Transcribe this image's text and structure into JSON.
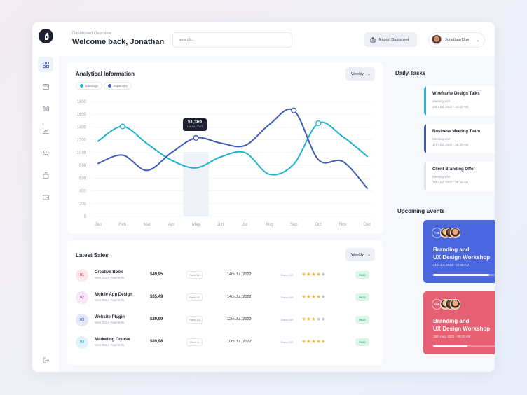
{
  "header": {
    "subtitle": "Dashboard Overview",
    "title": "Welcome back, Jonathan",
    "search_placeholder": "search...",
    "export_label": "Export Datasheet",
    "user_name": "Jonathan Doe"
  },
  "analytics": {
    "title": "Analytical Information",
    "period": "Weekly",
    "legend": [
      "Earnings",
      "Expenses"
    ],
    "tooltip_value": "$1,369",
    "tooltip_date": "1st Jul, 2022"
  },
  "chart_data": {
    "type": "line",
    "categories": [
      "Jan",
      "Feb",
      "Mar",
      "Apr",
      "May",
      "Jun",
      "Jul",
      "Aug",
      "Sep",
      "Oct",
      "Nov",
      "Dec"
    ],
    "ylim": [
      0,
      1800
    ],
    "yticks": [
      "1800",
      "1600",
      "1400",
      "1200",
      "1000",
      "800",
      "600",
      "400",
      "200",
      "0"
    ],
    "series": [
      {
        "name": "Earnings",
        "color": "#20b3d0",
        "values": [
          1180,
          1410,
          1140,
          880,
          760,
          930,
          1000,
          660,
          820,
          1460,
          1250,
          940
        ]
      },
      {
        "name": "Expenses",
        "color": "#3f5bb5",
        "values": [
          830,
          960,
          720,
          1000,
          1230,
          1150,
          1110,
          1440,
          1660,
          890,
          860,
          440
        ]
      }
    ],
    "highlight_category": "May"
  },
  "sales": {
    "title": "Latest Sales",
    "period": "Weekly",
    "rows": [
      {
        "num": "01",
        "name": "Creative Book",
        "sub": "Web Store Payments",
        "price": "$49,95",
        "rank": "Rank 11",
        "date": "14th Jul, 2022",
        "rated": "Rated 4/5",
        "stars": 4,
        "status": "PAID"
      },
      {
        "num": "02",
        "name": "Mobile App Design",
        "sub": "Web Store Payments",
        "price": "$35,49",
        "rank": "Rank 52",
        "date": "14th Jul, 2022",
        "rated": "Rated 4/5",
        "stars": 4,
        "status": "PAID"
      },
      {
        "num": "03",
        "name": "Website Plugin",
        "sub": "Web Store Payments",
        "price": "$29,99",
        "rank": "Rank 14",
        "date": "12th Jul, 2022",
        "rated": "Rated 3/5",
        "stars": 3,
        "status": "PAID"
      },
      {
        "num": "04",
        "name": "Marketing Course",
        "sub": "Web Store Payments",
        "price": "$89,98",
        "rank": "Rank 6",
        "date": "10th Jul, 2022",
        "rated": "Rated 5/5",
        "stars": 5,
        "status": "PAID"
      }
    ]
  },
  "tasks": {
    "title": "Daily Tasks",
    "items": [
      {
        "title": "Wireframe Design Talks",
        "sub": "Meeting with",
        "date": "15th Jul, 2022 - 10:00 AM",
        "done": false
      },
      {
        "title": "Business Meeting Team",
        "sub": "Meeting with",
        "date": "17th Jul, 2022 - 08:30 AM",
        "done": false
      },
      {
        "title": "Client Branding Offer",
        "sub": "Meeting with",
        "date": "15th Jul, 2022 - 09:45 AM",
        "done": true
      }
    ]
  },
  "events": {
    "title": "Upcoming Events",
    "items": [
      {
        "badge": "+35",
        "title_line1": "Branding and",
        "title_line2": "UX Design Workshop",
        "date": "21th Jul, 2022 - 09:00 AM",
        "progress": 0.82
      },
      {
        "badge": "+69",
        "title_line1": "Branding and",
        "title_line2": "UX Design Workshop",
        "date": "15th Aug, 2022 - 09:00 AM",
        "progress": 0.5
      }
    ]
  },
  "colors": {
    "earnings": "#20b3d0",
    "expenses": "#3f5bb5",
    "event_blue": "#4a67e0",
    "event_red": "#e56073",
    "star": "#f4b82a",
    "star_empty": "#b6bccb",
    "paid_green": "#2faa70"
  }
}
